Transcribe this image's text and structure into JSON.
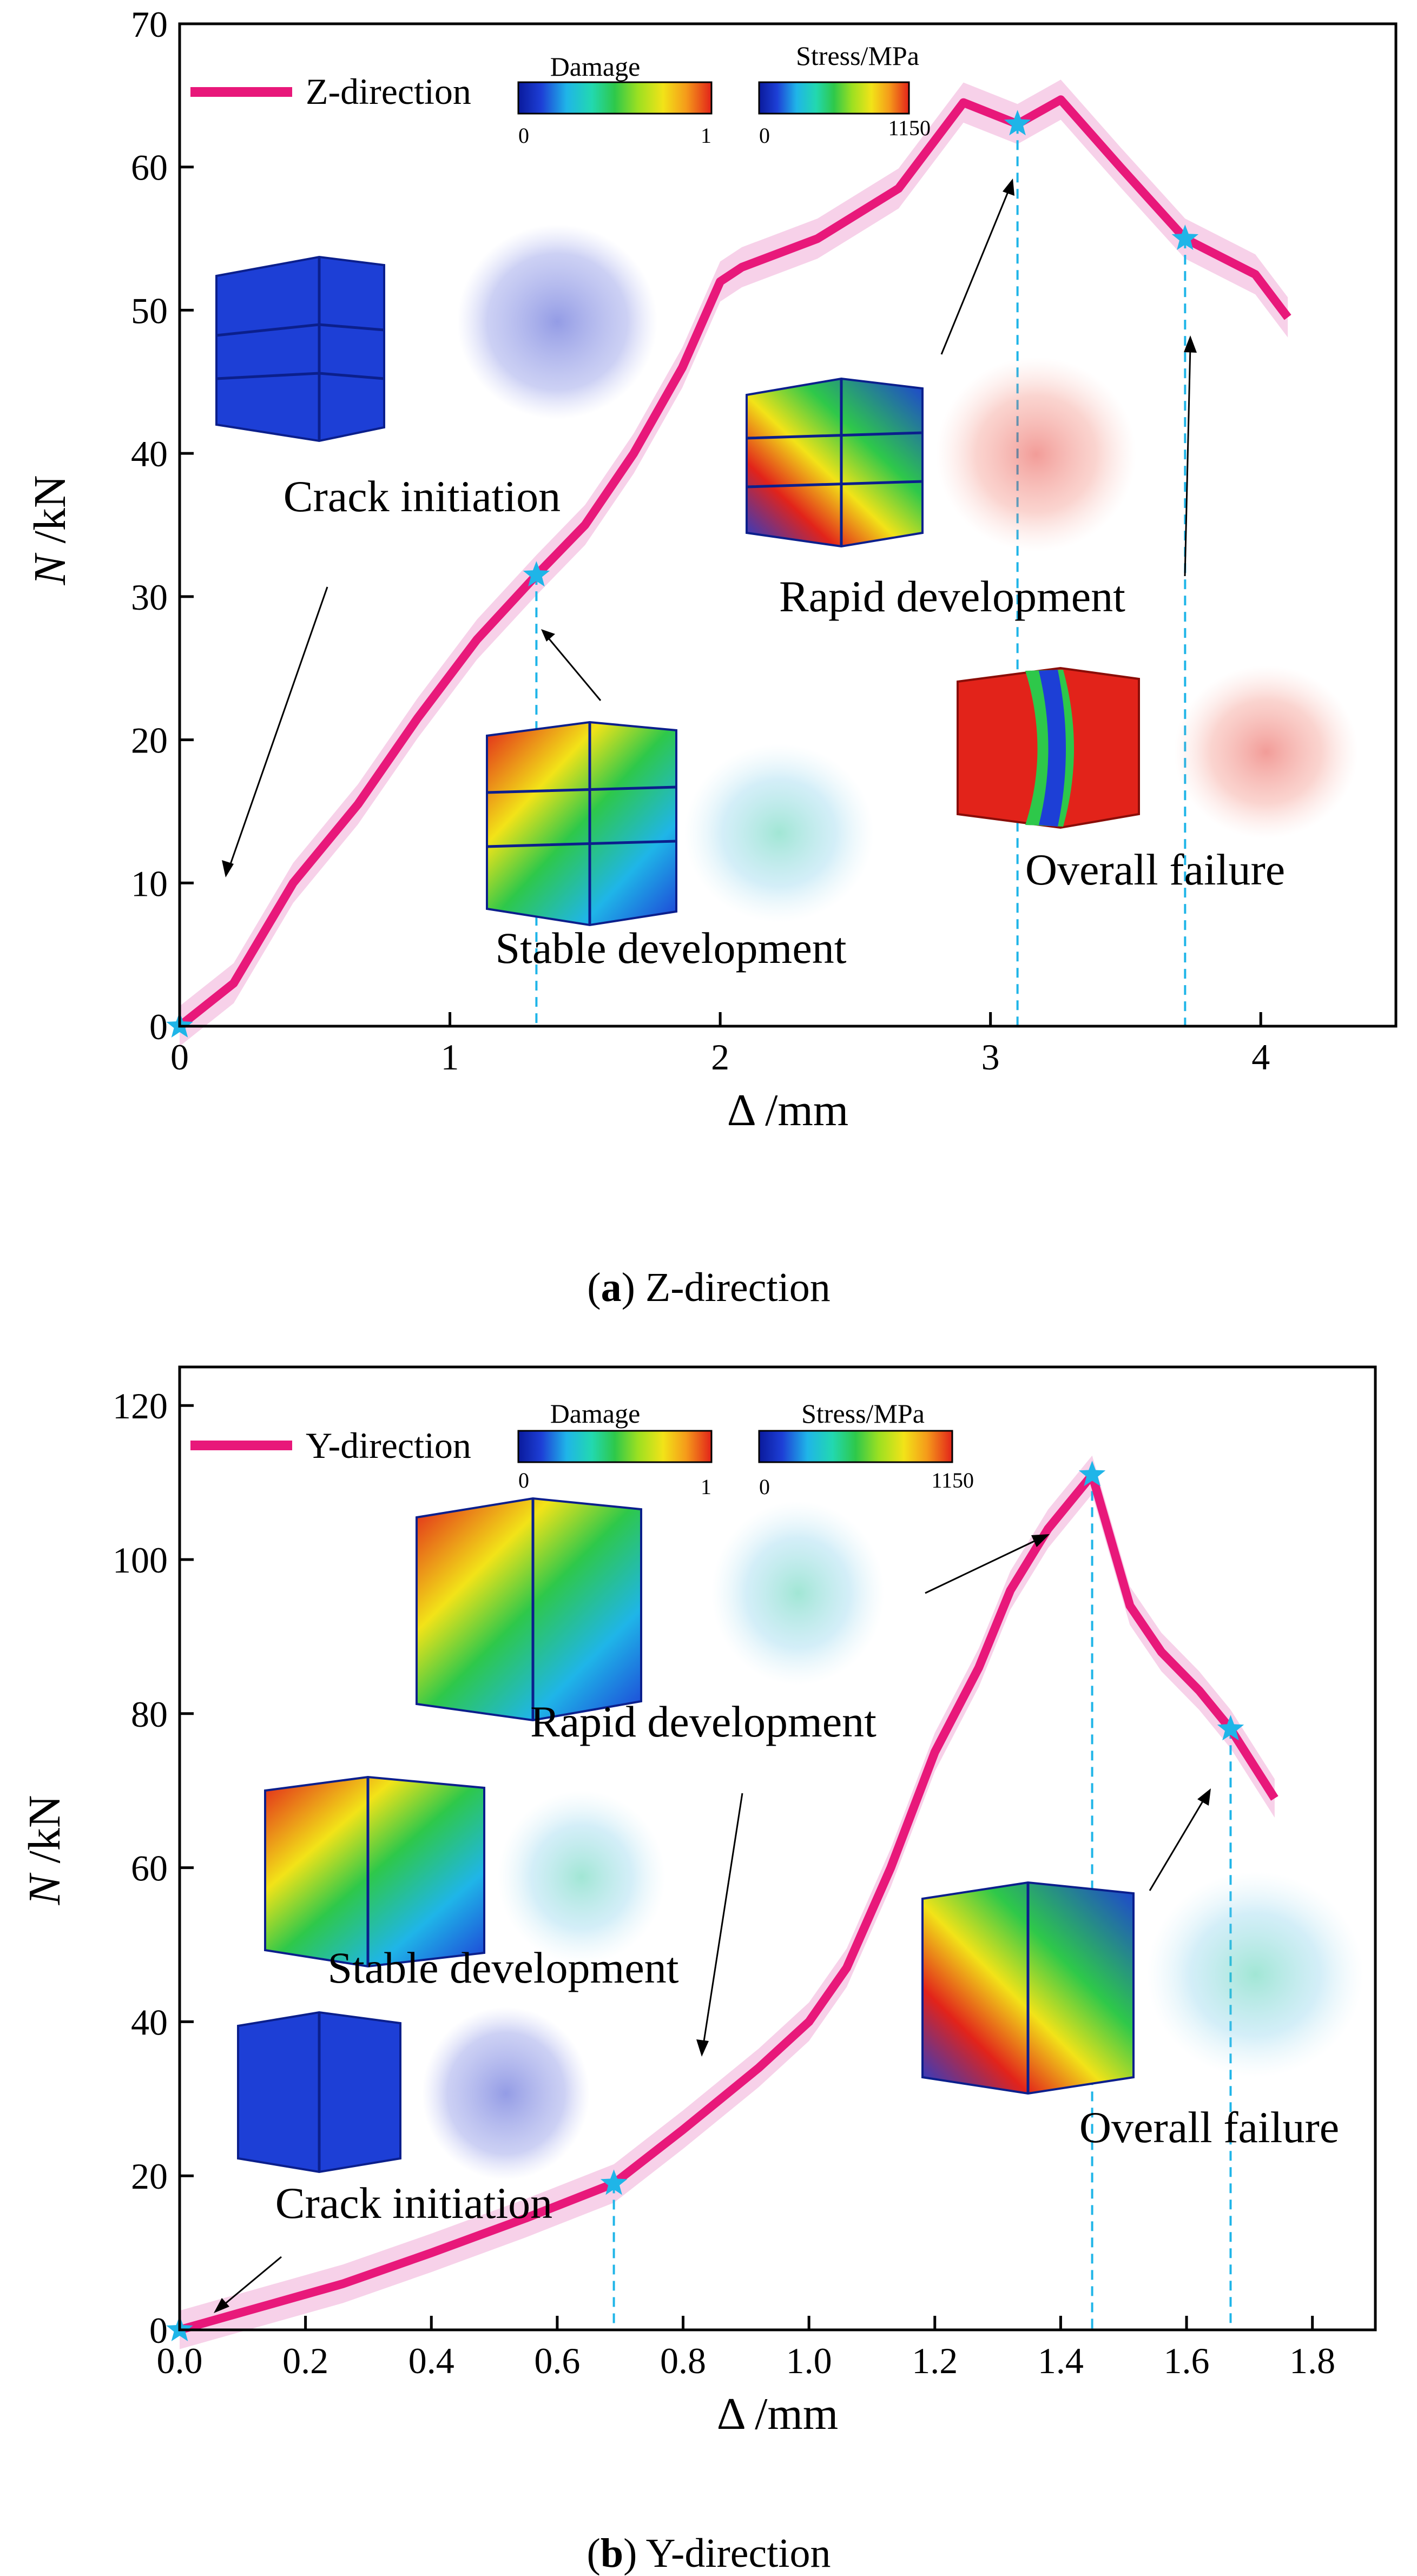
{
  "chart_data": [
    {
      "type": "line",
      "series": [
        {
          "name": "Z-direction",
          "x": [
            0,
            0.2,
            0.42,
            0.66,
            0.88,
            1.1,
            1.32,
            1.5,
            1.68,
            1.86,
            2.0,
            2.08,
            2.36,
            2.66,
            2.9,
            3.1,
            3.26,
            3.48,
            3.72,
            3.98,
            4.1
          ],
          "y": [
            0,
            3,
            10,
            15.5,
            21.5,
            27,
            31.5,
            35,
            40,
            46,
            52,
            53,
            55,
            58.5,
            64.5,
            63,
            64.7,
            60,
            55,
            52.5,
            49.5
          ]
        }
      ],
      "xlabel": "Δ /mm",
      "ylabel_italic": "N",
      "ylabel_rest": " /kN",
      "xlim": [
        0,
        4.5
      ],
      "ylim": [
        0,
        70
      ],
      "xticks": [
        "0",
        "1",
        "2",
        "3",
        "4"
      ],
      "yticks": [
        "0",
        "10",
        "20",
        "30",
        "40",
        "50",
        "60",
        "70"
      ],
      "markers": [
        {
          "x": 0,
          "y": 0
        },
        {
          "x": 1.32,
          "y": 31.5
        },
        {
          "x": 3.1,
          "y": 63
        },
        {
          "x": 3.72,
          "y": 55
        }
      ],
      "annotations": [
        "Crack initiation",
        "Stable development",
        "Rapid development",
        "Overall failure"
      ],
      "colorbars": [
        {
          "title": "Damage",
          "min": "0",
          "max": "1"
        },
        {
          "title": "Stress/MPa",
          "min": "0",
          "max": "1150"
        }
      ],
      "caption_letter": "a",
      "caption_text": ") Z-direction"
    },
    {
      "type": "line",
      "series": [
        {
          "name": "Y-direction",
          "x": [
            0,
            0.13,
            0.26,
            0.4,
            0.55,
            0.69,
            0.8,
            0.92,
            1.0,
            1.06,
            1.13,
            1.2,
            1.27,
            1.32,
            1.38,
            1.45,
            1.51,
            1.56,
            1.62,
            1.67,
            1.74
          ],
          "y": [
            0,
            3,
            6,
            10,
            14.5,
            19,
            26,
            34,
            40,
            47,
            60,
            75,
            86,
            96,
            104,
            111,
            94,
            88,
            83,
            78,
            69
          ]
        }
      ],
      "xlabel": "Δ /mm",
      "ylabel_italic": "N",
      "ylabel_rest": " /kN",
      "xlim": [
        0,
        1.9
      ],
      "ylim": [
        0,
        125
      ],
      "xticks": [
        "0.0",
        "0.2",
        "0.4",
        "0.6",
        "0.8",
        "1.0",
        "1.2",
        "1.4",
        "1.6",
        "1.8"
      ],
      "yticks": [
        "0",
        "20",
        "40",
        "60",
        "80",
        "100",
        "120"
      ],
      "markers": [
        {
          "x": 0,
          "y": 0
        },
        {
          "x": 0.69,
          "y": 19
        },
        {
          "x": 1.45,
          "y": 111
        },
        {
          "x": 1.67,
          "y": 78
        }
      ],
      "annotations": [
        "Rapid development",
        "Stable development",
        "Crack initiation",
        "Overall failure"
      ],
      "colorbars": [
        {
          "title": "Damage",
          "min": "0",
          "max": "1"
        },
        {
          "title": "Stress/MPa",
          "min": "0",
          "max": "1150"
        }
      ],
      "caption_letter": "b",
      "caption_text": ") Y-direction"
    }
  ],
  "colors": {
    "curve": "#e8187a",
    "band": "#f5c6e4",
    "marker": "#1fb5e8",
    "dash": "#1fb5e8",
    "red": "#e2231a",
    "blue": "#1d3fd6"
  }
}
